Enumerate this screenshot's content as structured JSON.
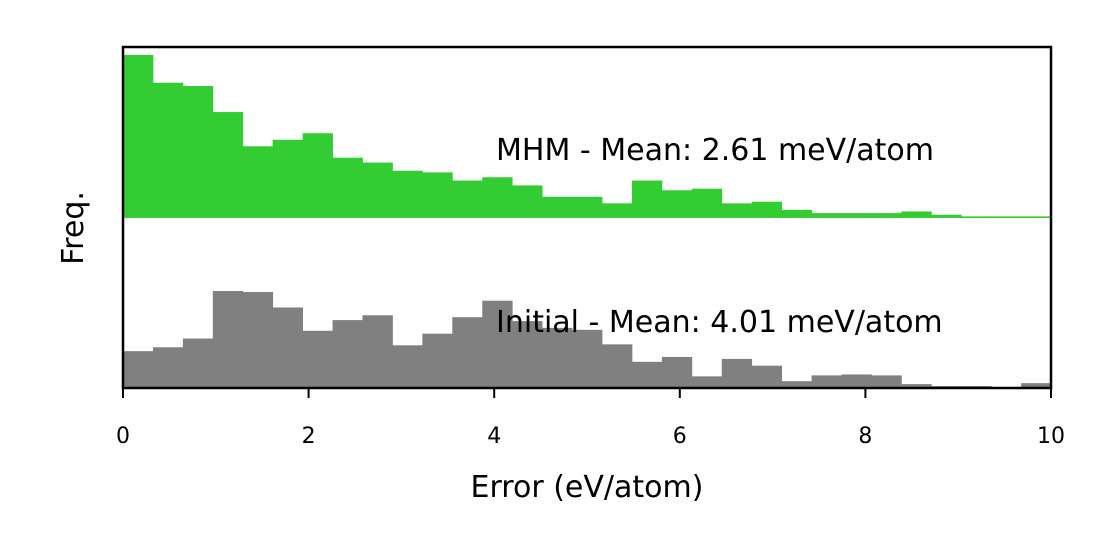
{
  "chart_data": {
    "type": "bar",
    "title": "",
    "xlabel": "Error (eV/atom)",
    "ylabel": "Freq.",
    "xlim": [
      0,
      10
    ],
    "xticks": [
      "0",
      "2",
      "4",
      "6",
      "8",
      "10"
    ],
    "bin_width": 0.3226,
    "grid": false,
    "series": [
      {
        "panel": "top",
        "color": "#33cc33",
        "annotation": "MHM - Mean: 2.61 meV/atom",
        "values": [
          1.0,
          0.83,
          0.81,
          0.65,
          0.44,
          0.48,
          0.52,
          0.37,
          0.34,
          0.29,
          0.28,
          0.23,
          0.25,
          0.2,
          0.13,
          0.13,
          0.09,
          0.23,
          0.17,
          0.18,
          0.09,
          0.1,
          0.05,
          0.03,
          0.03,
          0.03,
          0.04,
          0.02,
          0.01,
          0.01,
          0.01
        ]
      },
      {
        "panel": "bottom",
        "color": "#808080",
        "annotation": "Initial - Mean: 4.01 meV/atom",
        "values": [
          0.38,
          0.42,
          0.51,
          1.0,
          0.99,
          0.83,
          0.59,
          0.7,
          0.75,
          0.44,
          0.56,
          0.73,
          0.9,
          0.69,
          0.62,
          0.6,
          0.45,
          0.27,
          0.32,
          0.12,
          0.3,
          0.23,
          0.07,
          0.13,
          0.14,
          0.13,
          0.04,
          0.02,
          0.02,
          0.01,
          0.05
        ]
      }
    ]
  }
}
